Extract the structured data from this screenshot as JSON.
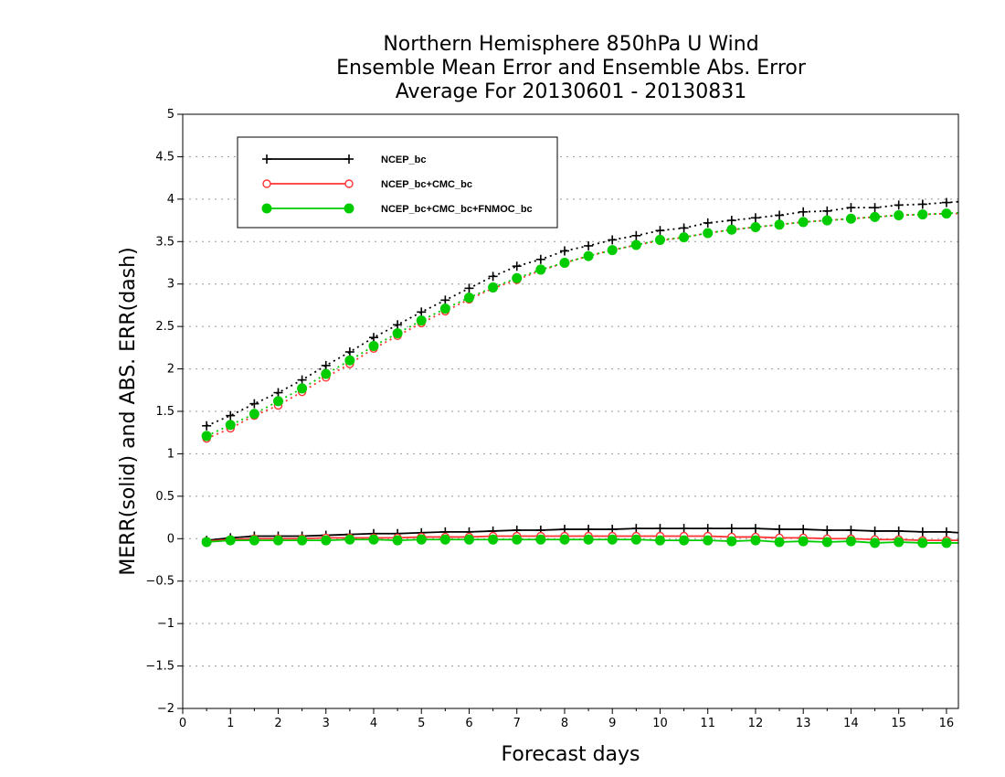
{
  "chart_data": {
    "type": "line",
    "title": [
      "Northern Hemisphere 850hPa U Wind",
      "Ensemble Mean Error and Ensemble Abs. Error",
      "Average For 20130601 - 20130831"
    ],
    "xlabel": "Forecast days",
    "ylabel": "MERR(solid) and ABS. ERR(dash)",
    "xlim": [
      0,
      16.25
    ],
    "ylim": [
      -2,
      5
    ],
    "x_ticks": [
      0,
      1,
      2,
      3,
      4,
      5,
      6,
      7,
      8,
      9,
      10,
      11,
      12,
      13,
      14,
      15,
      16
    ],
    "y_ticks": [
      -2,
      -1.5,
      -1,
      -0.5,
      0,
      0.5,
      1,
      1.5,
      2,
      2.5,
      3,
      3.5,
      4,
      4.5,
      5
    ],
    "grid": true,
    "legend_position": "top-left",
    "x": [
      0.5,
      1,
      1.5,
      2,
      2.5,
      3,
      3.5,
      4,
      4.5,
      5,
      5.5,
      6,
      6.5,
      7,
      7.5,
      8,
      8.5,
      9,
      9.5,
      10,
      10.5,
      11,
      11.5,
      12,
      12.5,
      13,
      13.5,
      14,
      14.5,
      15,
      15.5,
      16,
      16.25
    ],
    "series": [
      {
        "name": "NCEP_bc",
        "color": "#000000",
        "marker": "plus",
        "merr": [
          -0.02,
          0.01,
          0.03,
          0.03,
          0.03,
          0.04,
          0.05,
          0.06,
          0.06,
          0.07,
          0.08,
          0.08,
          0.09,
          0.1,
          0.1,
          0.11,
          0.11,
          0.11,
          0.12,
          0.12,
          0.12,
          0.12,
          0.12,
          0.12,
          0.11,
          0.11,
          0.1,
          0.1,
          0.09,
          0.09,
          0.08,
          0.08,
          0.07
        ],
        "abs_err": [
          1.33,
          1.45,
          1.59,
          1.72,
          1.87,
          2.04,
          2.2,
          2.37,
          2.52,
          2.67,
          2.81,
          2.95,
          3.09,
          3.21,
          3.29,
          3.39,
          3.45,
          3.52,
          3.57,
          3.63,
          3.66,
          3.72,
          3.75,
          3.78,
          3.81,
          3.85,
          3.86,
          3.9,
          3.9,
          3.93,
          3.94,
          3.96,
          3.97
        ]
      },
      {
        "name": "NCEP_bc+CMC_bc",
        "color": "#ff3333",
        "marker": "open-circle",
        "merr": [
          -0.03,
          -0.01,
          0.0,
          0.0,
          0.0,
          0.01,
          0.01,
          0.01,
          0.01,
          0.02,
          0.02,
          0.02,
          0.03,
          0.03,
          0.03,
          0.03,
          0.03,
          0.03,
          0.03,
          0.03,
          0.03,
          0.03,
          0.02,
          0.02,
          0.01,
          0.01,
          0.0,
          0.0,
          -0.01,
          -0.01,
          -0.02,
          -0.02,
          -0.02
        ],
        "abs_err": [
          1.18,
          1.3,
          1.45,
          1.57,
          1.73,
          1.9,
          2.06,
          2.24,
          2.39,
          2.54,
          2.68,
          2.82,
          2.95,
          3.05,
          3.16,
          3.25,
          3.33,
          3.4,
          3.46,
          3.51,
          3.55,
          3.6,
          3.64,
          3.67,
          3.7,
          3.73,
          3.75,
          3.77,
          3.79,
          3.81,
          3.82,
          3.83,
          3.83
        ]
      },
      {
        "name": "NCEP_bc+CMC_bc+FNMOC_bc",
        "color": "#00cc00",
        "marker": "filled-circle",
        "merr": [
          -0.04,
          -0.02,
          -0.02,
          -0.02,
          -0.02,
          -0.02,
          -0.01,
          -0.01,
          -0.02,
          -0.01,
          -0.01,
          -0.01,
          -0.01,
          -0.01,
          -0.01,
          -0.01,
          -0.01,
          -0.01,
          -0.01,
          -0.02,
          -0.02,
          -0.02,
          -0.03,
          -0.02,
          -0.04,
          -0.03,
          -0.04,
          -0.03,
          -0.05,
          -0.04,
          -0.05,
          -0.05,
          -0.05
        ],
        "abs_err": [
          1.21,
          1.34,
          1.47,
          1.62,
          1.77,
          1.94,
          2.1,
          2.27,
          2.42,
          2.57,
          2.71,
          2.84,
          2.96,
          3.07,
          3.17,
          3.25,
          3.33,
          3.4,
          3.46,
          3.52,
          3.55,
          3.6,
          3.64,
          3.67,
          3.7,
          3.73,
          3.75,
          3.77,
          3.79,
          3.81,
          3.82,
          3.83,
          3.84
        ]
      }
    ]
  }
}
